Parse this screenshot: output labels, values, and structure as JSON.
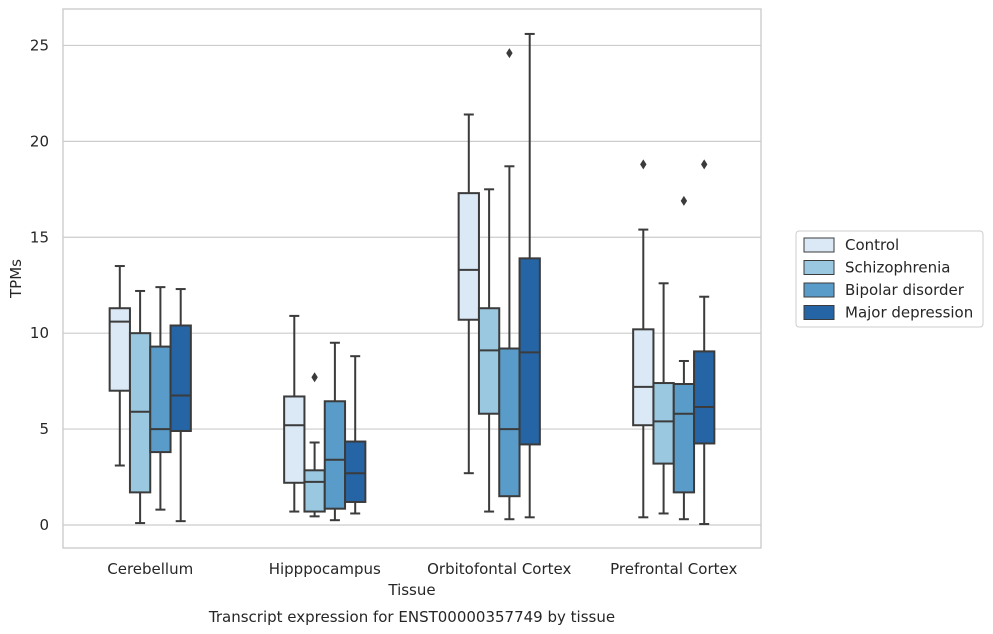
{
  "chart_data": {
    "type": "boxplot",
    "title": "Transcript expression for ENST00000357749 by tissue",
    "xlabel": "Tissue",
    "ylabel": "TPMs",
    "ylim": [
      -1.2,
      26.9
    ],
    "yticks": [
      0,
      5,
      10,
      15,
      20,
      25
    ],
    "grid": "horizontal",
    "legend_position": "right",
    "categories": [
      "Cerebellum",
      "Hipppocampus",
      "Orbitofontal Cortex",
      "Prefrontal Cortex"
    ],
    "series": [
      {
        "name": "Control",
        "color": "#dbe9f6",
        "boxes": [
          {
            "whisker_low": 3.1,
            "q1": 7.0,
            "median": 10.6,
            "q3": 11.3,
            "whisker_high": 13.5,
            "outliers": []
          },
          {
            "whisker_low": 0.7,
            "q1": 2.2,
            "median": 5.2,
            "q3": 6.7,
            "whisker_high": 10.9,
            "outliers": []
          },
          {
            "whisker_low": 2.7,
            "q1": 10.7,
            "median": 13.3,
            "q3": 17.3,
            "whisker_high": 21.4,
            "outliers": []
          },
          {
            "whisker_low": 0.4,
            "q1": 5.2,
            "median": 7.2,
            "q3": 10.2,
            "whisker_high": 15.4,
            "outliers": [
              18.8
            ]
          }
        ]
      },
      {
        "name": "Schizophrenia",
        "color": "#9ac8e0",
        "boxes": [
          {
            "whisker_low": 0.1,
            "q1": 1.7,
            "median": 5.9,
            "q3": 10.0,
            "whisker_high": 12.2,
            "outliers": []
          },
          {
            "whisker_low": 0.45,
            "q1": 0.7,
            "median": 2.25,
            "q3": 2.85,
            "whisker_high": 4.3,
            "outliers": [
              7.7
            ]
          },
          {
            "whisker_low": 0.7,
            "q1": 5.8,
            "median": 9.1,
            "q3": 11.3,
            "whisker_high": 17.5,
            "outliers": []
          },
          {
            "whisker_low": 0.6,
            "q1": 3.2,
            "median": 5.4,
            "q3": 7.4,
            "whisker_high": 12.6,
            "outliers": []
          }
        ]
      },
      {
        "name": "Bipolar disorder",
        "color": "#5a9cc9",
        "boxes": [
          {
            "whisker_low": 0.8,
            "q1": 3.8,
            "median": 5.0,
            "q3": 9.3,
            "whisker_high": 12.4,
            "outliers": []
          },
          {
            "whisker_low": 0.25,
            "q1": 0.85,
            "median": 3.4,
            "q3": 6.45,
            "whisker_high": 9.5,
            "outliers": []
          },
          {
            "whisker_low": 0.3,
            "q1": 1.5,
            "median": 5.0,
            "q3": 9.2,
            "whisker_high": 18.7,
            "outliers": [
              24.6
            ]
          },
          {
            "whisker_low": 0.3,
            "q1": 1.7,
            "median": 5.8,
            "q3": 7.35,
            "whisker_high": 8.55,
            "outliers": [
              16.9
            ]
          }
        ]
      },
      {
        "name": "Major depression",
        "color": "#2565a6",
        "boxes": [
          {
            "whisker_low": 0.2,
            "q1": 4.9,
            "median": 6.75,
            "q3": 10.4,
            "whisker_high": 12.3,
            "outliers": []
          },
          {
            "whisker_low": 0.6,
            "q1": 1.2,
            "median": 2.7,
            "q3": 4.35,
            "whisker_high": 8.8,
            "outliers": []
          },
          {
            "whisker_low": 0.4,
            "q1": 4.2,
            "median": 9.0,
            "q3": 13.9,
            "whisker_high": 25.6,
            "outliers": []
          },
          {
            "whisker_low": 0.05,
            "q1": 4.25,
            "median": 6.15,
            "q3": 9.05,
            "whisker_high": 11.9,
            "outliers": [
              18.8
            ]
          }
        ]
      }
    ]
  }
}
